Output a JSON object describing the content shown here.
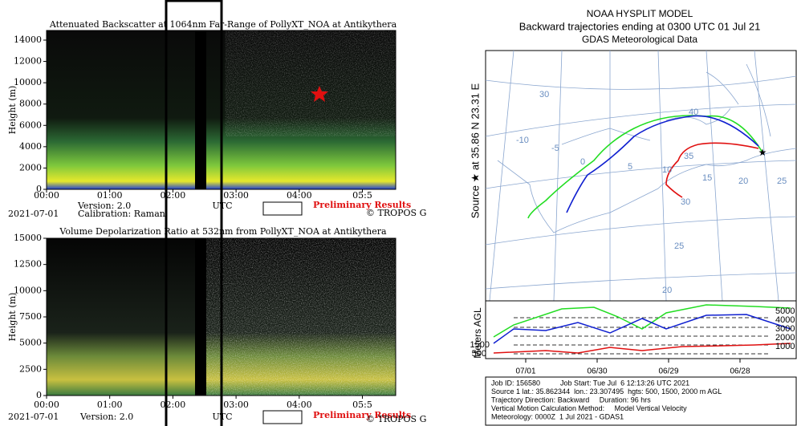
{
  "backscatter_plot": {
    "title": "Attenuated Backscatter at 1064nm Far-Range of PollyXT_NOA at Antikythera",
    "y_label": "Height (m)",
    "y_ticks": [
      "0",
      "2000",
      "4000",
      "6000",
      "8000",
      "10000",
      "12000",
      "14000"
    ],
    "x_ticks": [
      "00:00",
      "01:00",
      "02:00",
      "03:00",
      "04:00",
      "05:5"
    ],
    "date": "2021-07-01",
    "notes": [
      "Version: 2.0",
      "Calibration: Raman"
    ],
    "x_label": "UTC",
    "badge": "Preliminary Results",
    "credit": "© TROPOS G"
  },
  "depol_plot": {
    "title": "Volume Depolarization Ratio at 532nm from PollyXT_NOA at Antikythera",
    "y_label": "Height (m)",
    "y_ticks": [
      "0",
      "2500",
      "5000",
      "7500",
      "10000",
      "12500",
      "15000"
    ],
    "x_ticks": [
      "00:00",
      "01:00",
      "02:00",
      "03:00",
      "04:00",
      "05:5"
    ],
    "date": "2021-07-01",
    "notes": [
      "Version: 2.0"
    ],
    "x_label": "UTC",
    "badge": "Preliminary Results",
    "credit": "© TROPOS G"
  },
  "hysplit": {
    "title_lines": [
      "NOAA HYSPLIT MODEL",
      "Backward trajectories ending at 0300 UTC 01 Jul 21",
      "GDAS Meteorological Data"
    ],
    "source_label": "Source ★ at 35.86 N 23.31 E",
    "map_labels": [
      "40",
      "35",
      "30",
      "25",
      "20",
      "15",
      "10",
      "5",
      "0",
      "-5",
      "-10",
      "25",
      "20",
      "30"
    ],
    "height_axis_label": "Meters AGL",
    "height_ticks": [
      "5000",
      "4000",
      "3000",
      "2000",
      "1000"
    ],
    "source_heights": [
      "1500",
      "500"
    ],
    "date_ticks": [
      "07/01",
      "06/30",
      "06/29",
      "06/28"
    ],
    "info_lines": [
      "Job ID: 156580          Job Start: Tue Jul  6 12:13:26 UTC 2021",
      "Source 1 lat.: 35.862344  lon.: 23.307495  hgts: 500, 1500, 2000 m AGL",
      "Trajectory Direction: Backward     Duration: 96 hrs",
      "Vertical Motion Calculation Method:     Model Vertical Velocity",
      "Meteorology: 0000Z  1 Jul 2021 - GDAS1"
    ]
  }
}
